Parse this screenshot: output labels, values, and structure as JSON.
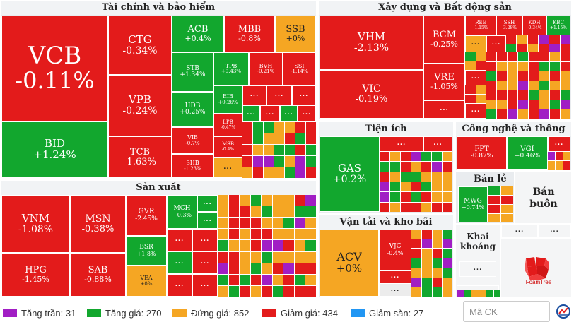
{
  "sectors": {
    "finance": {
      "title": "Tài chính và bảo hiểm",
      "tiles": {
        "vcb": {
          "ticker": "VCB",
          "change": "-0.11%"
        },
        "bid": {
          "ticker": "BID",
          "change": "+1.24%"
        },
        "ctg": {
          "ticker": "CTG",
          "change": "-0.34%"
        },
        "vpb": {
          "ticker": "VPB",
          "change": "-0.24%"
        },
        "tcb": {
          "ticker": "TCB",
          "change": "-1.63%"
        },
        "acb": {
          "ticker": "ACB",
          "change": "+0.4%"
        },
        "mbb": {
          "ticker": "MBB",
          "change": "-0.8%"
        },
        "ssb": {
          "ticker": "SSB",
          "change": "+0%"
        },
        "stb": {
          "ticker": "STB",
          "change": "+1.34%"
        },
        "tpb": {
          "ticker": "TPB",
          "change": "+0.43%"
        },
        "bvh": {
          "ticker": "BVH",
          "change": "-0.21%"
        },
        "ssi": {
          "ticker": "SSI",
          "change": "-1.14%"
        },
        "hdb": {
          "ticker": "HDB",
          "change": "+0.25%"
        },
        "eib": {
          "ticker": "EIB",
          "change": "+0.26%"
        },
        "vib": {
          "ticker": "VIB",
          "change": "-0.7%"
        },
        "lpb": {
          "ticker": "LPB",
          "change": "-0.47%"
        },
        "msb": {
          "ticker": "MSB",
          "change": "-0.4%"
        },
        "shb": {
          "ticker": "SHB",
          "change": "-1.23%"
        }
      }
    },
    "production": {
      "title": "Sản xuất",
      "tiles": {
        "vnm": {
          "ticker": "VNM",
          "change": "-1.08%"
        },
        "msn": {
          "ticker": "MSN",
          "change": "-0.38%"
        },
        "hpg": {
          "ticker": "HPG",
          "change": "-1.45%"
        },
        "sab": {
          "ticker": "SAB",
          "change": "-0.88%"
        },
        "gvr": {
          "ticker": "GVR",
          "change": "-2.45%"
        },
        "bsr": {
          "ticker": "BSR",
          "change": "+1.8%"
        },
        "vea": {
          "ticker": "VEA",
          "change": "+0%"
        },
        "mch": {
          "ticker": "MCH",
          "change": "+0.3%"
        }
      }
    },
    "construction": {
      "title": "Xây dựng và Bất động sản",
      "tiles": {
        "vhm": {
          "ticker": "VHM",
          "change": "-2.13%"
        },
        "vic": {
          "ticker": "VIC",
          "change": "-0.19%"
        },
        "bcm": {
          "ticker": "BCM",
          "change": "-0.25%"
        },
        "vre": {
          "ticker": "VRE",
          "change": "-1.05%"
        },
        "kbc": {
          "ticker": "KBC",
          "change": "+1.15%"
        },
        "kdh": {
          "ticker": "KDH",
          "change": "-0.34%"
        },
        "ssh": {
          "ticker": "SSH",
          "change": "-3.28%"
        },
        "ree": {
          "ticker": "REE",
          "change": "-1.15%"
        }
      }
    },
    "utilities": {
      "title": "Tiện ích",
      "tiles": {
        "gas": {
          "ticker": "GAS",
          "change": "+0.2%"
        }
      }
    },
    "tech": {
      "title": "Công nghệ và thông tin",
      "tiles": {
        "fpt": {
          "ticker": "FPT",
          "change": "-0.87%"
        },
        "vgi": {
          "ticker": "VGI",
          "change": "+0.46%"
        }
      }
    },
    "retail": {
      "title": "Bán lẻ",
      "tiles": {
        "mwg": {
          "ticker": "MWG",
          "change": "+0.74%"
        }
      }
    },
    "wholesale": {
      "title": "Bán buôn"
    },
    "mining": {
      "title": "Khai khoáng"
    },
    "transport": {
      "title": "Vận tải và kho bãi",
      "tiles": {
        "acv": {
          "ticker": "ACV",
          "change": "+0%"
        },
        "vjc": {
          "ticker": "VJC",
          "change": "-0.4%"
        }
      }
    }
  },
  "ellipsis": "...",
  "legend": {
    "ceiling": {
      "label": "Tăng trần: 31",
      "color": "#a11ec4"
    },
    "up": {
      "label": "Tăng giá: 270",
      "color": "#12a72e"
    },
    "flat": {
      "label": "Đứng giá: 852",
      "color": "#f5a623"
    },
    "down": {
      "label": "Giảm giá: 434",
      "color": "#e31b1b"
    },
    "floor": {
      "label": "Giảm sàn: 27",
      "color": "#2196f3"
    }
  },
  "search": {
    "placeholder": "Mã CK"
  },
  "branding": {
    "foamtree": "FoamTree"
  }
}
